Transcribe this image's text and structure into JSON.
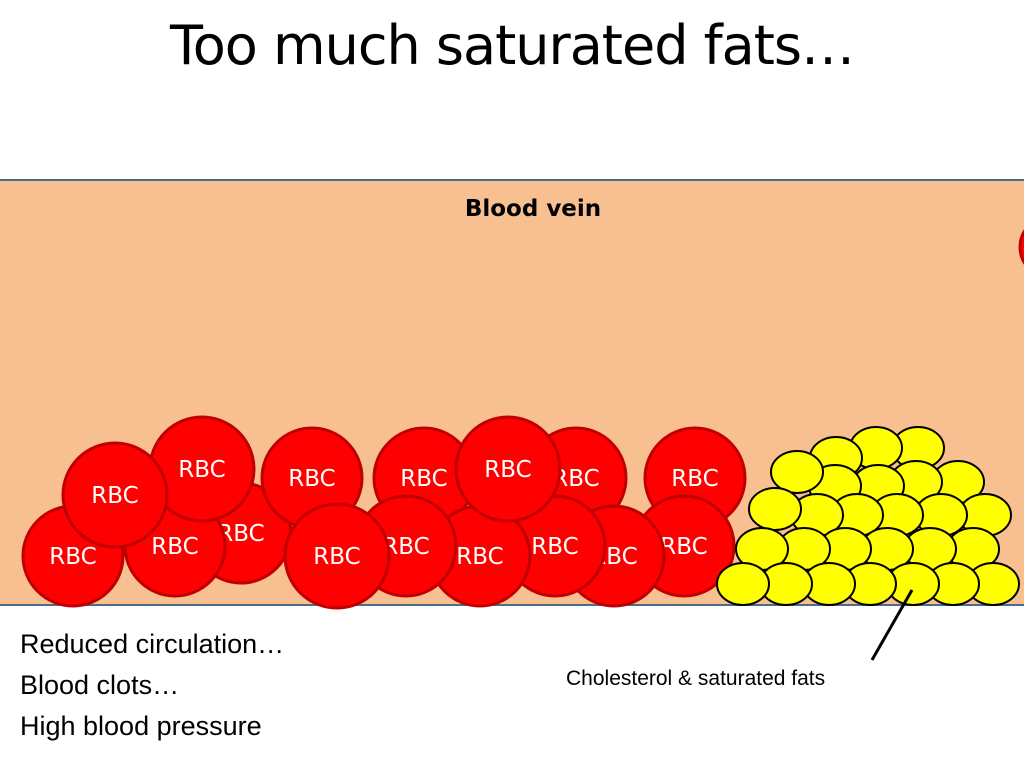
{
  "slide": {
    "title": "Too much saturated fats…"
  },
  "vein": {
    "label": "Blood vein",
    "fill_color": "#F8C091",
    "edge_color": "#4A6D8C"
  },
  "rbc": {
    "label": "RBC",
    "fill_color": "#FF0000",
    "stroke_color": "#C00000"
  },
  "fat": {
    "fill_color": "#FFFF00",
    "stroke_color": "#000000"
  },
  "callout": {
    "label": "Cholesterol & saturated fats"
  },
  "effects": [
    "Reduced circulation…",
    "Blood clots…",
    "High blood pressure"
  ]
}
